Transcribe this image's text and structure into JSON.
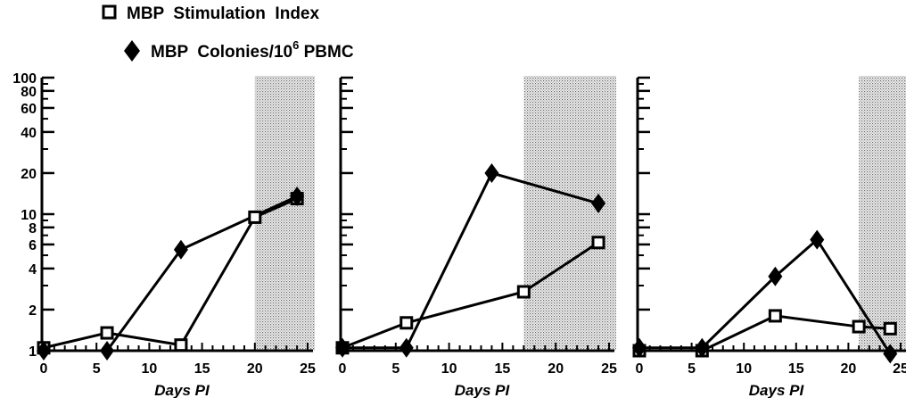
{
  "legend": {
    "items": [
      {
        "marker": "open-square",
        "label": "MBP  Stimulation  Index"
      },
      {
        "marker": "filled-diamond",
        "label": "MBP  Colonies/10",
        "superscript": "6",
        "suffix": " PBMC"
      }
    ]
  },
  "chart_data": [
    {
      "type": "line",
      "xlabel": "Days PI",
      "ylabel": "",
      "yscale": "log",
      "xlim": [
        0,
        25
      ],
      "ylim": [
        1,
        100
      ],
      "xticks": [
        0,
        5,
        10,
        15,
        20,
        25
      ],
      "yticks": [
        1,
        2,
        4,
        6,
        8,
        10,
        20,
        40,
        60,
        80,
        100
      ],
      "yticklabels": [
        "1",
        "2",
        "4",
        "6",
        "8",
        "10",
        "20",
        "40",
        "60",
        "80",
        "100"
      ],
      "shaded_region": [
        20,
        25
      ],
      "series": [
        {
          "name": "MBP Stimulation Index",
          "marker": "open-square",
          "x": [
            0,
            6,
            13,
            20,
            24
          ],
          "y": [
            1.05,
            1.35,
            1.1,
            9.5,
            13
          ]
        },
        {
          "name": "MBP Colonies/10^6 PBMC",
          "marker": "filled-diamond",
          "x": [
            0,
            6,
            13,
            24
          ],
          "y": [
            1.0,
            1.0,
            5.5,
            13.5
          ]
        }
      ]
    },
    {
      "type": "line",
      "xlabel": "Days PI",
      "ylabel": "",
      "yscale": "log",
      "xlim": [
        0,
        25
      ],
      "ylim": [
        1,
        100
      ],
      "xticks": [
        0,
        5,
        10,
        15,
        20,
        25
      ],
      "yticks": [
        1,
        2,
        4,
        6,
        8,
        10,
        20,
        40,
        60,
        80,
        100
      ],
      "yticklabels": [],
      "shaded_region": [
        17,
        25
      ],
      "series": [
        {
          "name": "MBP Stimulation Index",
          "marker": "open-square",
          "x": [
            0,
            6,
            17,
            24
          ],
          "y": [
            1.05,
            1.6,
            2.7,
            6.2
          ]
        },
        {
          "name": "MBP Colonies/10^6 PBMC",
          "marker": "filled-diamond",
          "x": [
            0,
            6,
            14,
            24
          ],
          "y": [
            1.05,
            1.05,
            20,
            12
          ]
        }
      ]
    },
    {
      "type": "line",
      "xlabel": "Days PI",
      "ylabel": "",
      "yscale": "log",
      "xlim": [
        0,
        25
      ],
      "ylim": [
        1,
        100
      ],
      "xticks": [
        0,
        5,
        10,
        15,
        20,
        25
      ],
      "yticks": [
        1,
        2,
        4,
        6,
        8,
        10,
        20,
        40,
        60,
        80,
        100
      ],
      "yticklabels": [],
      "shaded_region": [
        21,
        25
      ],
      "series": [
        {
          "name": "MBP Stimulation Index",
          "marker": "open-square",
          "x": [
            0,
            6,
            13,
            21,
            24
          ],
          "y": [
            1.0,
            1.0,
            1.8,
            1.5,
            1.45
          ]
        },
        {
          "name": "MBP Colonies/10^6 PBMC",
          "marker": "filled-diamond",
          "x": [
            0,
            6,
            13,
            17,
            24
          ],
          "y": [
            1.05,
            1.05,
            3.5,
            6.5,
            0.95
          ]
        }
      ]
    }
  ]
}
